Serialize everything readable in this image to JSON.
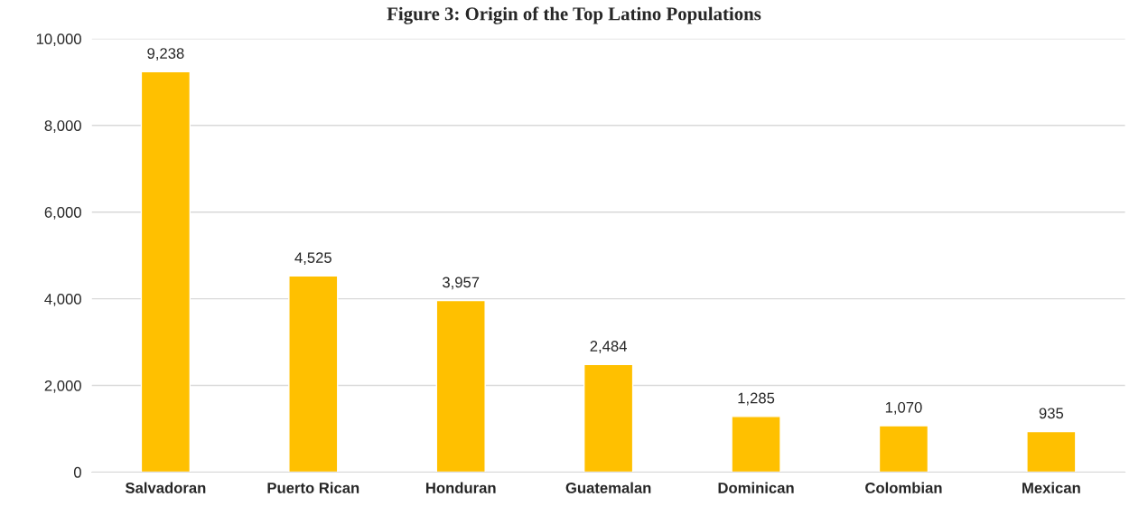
{
  "chart_data": {
    "type": "bar",
    "title": "Figure 3: Origin of the Top Latino Populations",
    "categories": [
      "Salvadoran",
      "Puerto Rican",
      "Honduran",
      "Guatemalan",
      "Dominican",
      "Colombian",
      "Mexican"
    ],
    "values": [
      9238,
      4525,
      3957,
      2484,
      1285,
      1070,
      935
    ],
    "value_labels": [
      "9,238",
      "4,525",
      "3,957",
      "2,484",
      "1,285",
      "1,070",
      "935"
    ],
    "color": "#ffc000",
    "ylim": [
      0,
      10000
    ],
    "yticks": [
      {
        "value": 0,
        "label": "0"
      },
      {
        "value": 2000,
        "label": "2,000"
      },
      {
        "value": 4000,
        "label": "4,000"
      },
      {
        "value": 6000,
        "label": "6,000"
      },
      {
        "value": 8000,
        "label": "8,000"
      },
      {
        "value": 10000,
        "label": "10,000"
      }
    ],
    "grid": "y",
    "legend": false
  }
}
